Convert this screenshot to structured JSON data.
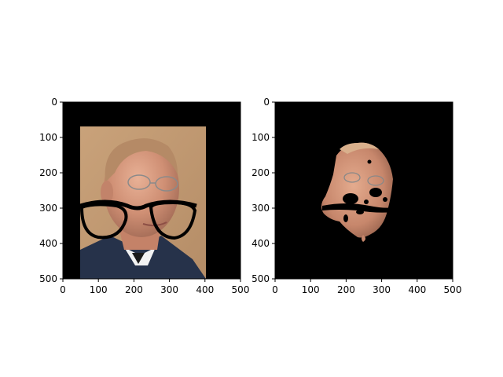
{
  "chart_data": [
    {
      "type": "image",
      "title": "",
      "xlabel": "",
      "ylabel": "",
      "xlim": [
        0,
        500
      ],
      "ylim": [
        500,
        0
      ],
      "xticks": [
        0,
        100,
        200,
        300,
        400,
        500
      ],
      "yticks": [
        0,
        100,
        200,
        300,
        400,
        500
      ],
      "background_color": "#000000",
      "content": "photo of face with drawn-on eyeglasses",
      "photo_extent": {
        "x": [
          48,
          402
        ],
        "y": [
          70,
          500
        ]
      }
    },
    {
      "type": "image",
      "title": "",
      "xlabel": "",
      "ylabel": "",
      "xlim": [
        0,
        500
      ],
      "ylim": [
        500,
        0
      ],
      "xticks": [
        0,
        100,
        200,
        300,
        400,
        500
      ],
      "yticks": [
        0,
        100,
        200,
        300,
        400,
        500
      ],
      "background_color": "#000000",
      "content": "segmented face region (skin mask) with holes"
    }
  ]
}
